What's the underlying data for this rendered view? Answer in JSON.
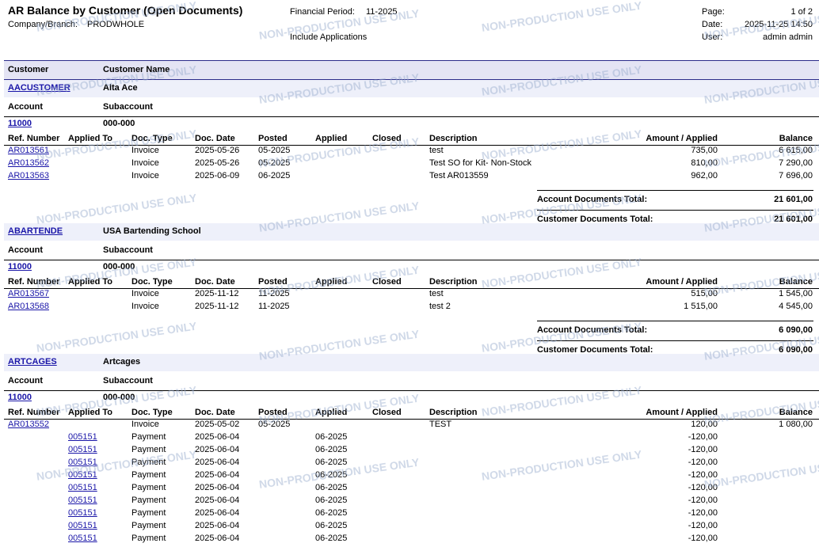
{
  "report": {
    "title": "AR Balance by Customer (Open Documents)",
    "company_label": "Company/Branch:",
    "company_value": "PRODWHOLE",
    "period_label": "Financial Period:",
    "period_value": "11-2025",
    "include_applications": "Include Applications",
    "page_label": "Page:",
    "page_value": "1 of 2",
    "date_label": "Date:",
    "date_value": "2025-11-25 14:50",
    "user_label": "User:",
    "user_value": "admin admin"
  },
  "headers": {
    "customer": "Customer",
    "customer_name": "Customer Name",
    "account": "Account",
    "subaccount": "Subaccount",
    "ref_number": "Ref. Number",
    "applied_to": "Applied To",
    "doc_type": "Doc. Type",
    "doc_date": "Doc. Date",
    "posted": "Posted",
    "applied": "Applied",
    "closed": "Closed",
    "description": "Description",
    "amount_applied": "Amount / Applied",
    "balance": "Balance"
  },
  "labels": {
    "account_total": "Account Documents Total:",
    "customer_total": "Customer Documents Total:"
  },
  "watermark": "NON-PRODUCTION USE ONLY",
  "customers": [
    {
      "id": "AACUSTOMER",
      "name": "Alta Ace",
      "account": "11000",
      "subaccount": "000-000",
      "rows": [
        {
          "ref": "AR013561",
          "applied_to": "",
          "doc_type": "Invoice",
          "doc_date": "2025-05-26",
          "posted": "05-2025",
          "applied": "",
          "closed": "",
          "description": "test",
          "amount": "735,00",
          "balance": "6 615,00"
        },
        {
          "ref": "AR013562",
          "applied_to": "",
          "doc_type": "Invoice",
          "doc_date": "2025-05-26",
          "posted": "05-2025",
          "applied": "",
          "closed": "",
          "description": "Test SO for Kit- Non-Stock",
          "amount": "810,00",
          "balance": "7 290,00"
        },
        {
          "ref": "AR013563",
          "applied_to": "",
          "doc_type": "Invoice",
          "doc_date": "2025-06-09",
          "posted": "06-2025",
          "applied": "",
          "closed": "",
          "description": "Test AR013559",
          "amount": "962,00",
          "balance": "7 696,00"
        }
      ],
      "account_total": "21 601,00",
      "customer_total": "21 601,00"
    },
    {
      "id": "ABARTENDE",
      "name": "USA Bartending School",
      "account": "11000",
      "subaccount": "000-000",
      "rows": [
        {
          "ref": "AR013567",
          "applied_to": "",
          "doc_type": "Invoice",
          "doc_date": "2025-11-12",
          "posted": "11-2025",
          "applied": "",
          "closed": "",
          "description": "test",
          "amount": "515,00",
          "balance": "1 545,00"
        },
        {
          "ref": "AR013568",
          "applied_to": "",
          "doc_type": "Invoice",
          "doc_date": "2025-11-12",
          "posted": "11-2025",
          "applied": "",
          "closed": "",
          "description": "test 2",
          "amount": "1 515,00",
          "balance": "4 545,00"
        }
      ],
      "account_total": "6 090,00",
      "customer_total": "6 090,00"
    },
    {
      "id": "ARTCAGES",
      "name": "Artcages",
      "account": "11000",
      "subaccount": "000-000",
      "rows": [
        {
          "ref": "AR013552",
          "applied_to": "",
          "doc_type": "Invoice",
          "doc_date": "2025-05-02",
          "posted": "05-2025",
          "applied": "",
          "closed": "",
          "description": "TEST",
          "amount": "120,00",
          "balance": "1 080,00"
        },
        {
          "ref": "",
          "applied_to": "005151",
          "doc_type": "Payment",
          "doc_date": "2025-06-04",
          "posted": "",
          "applied": "06-2025",
          "closed": "",
          "description": "",
          "amount": "-120,00",
          "balance": ""
        },
        {
          "ref": "",
          "applied_to": "005151",
          "doc_type": "Payment",
          "doc_date": "2025-06-04",
          "posted": "",
          "applied": "06-2025",
          "closed": "",
          "description": "",
          "amount": "-120,00",
          "balance": ""
        },
        {
          "ref": "",
          "applied_to": "005151",
          "doc_type": "Payment",
          "doc_date": "2025-06-04",
          "posted": "",
          "applied": "06-2025",
          "closed": "",
          "description": "",
          "amount": "-120,00",
          "balance": ""
        },
        {
          "ref": "",
          "applied_to": "005151",
          "doc_type": "Payment",
          "doc_date": "2025-06-04",
          "posted": "",
          "applied": "06-2025",
          "closed": "",
          "description": "",
          "amount": "-120,00",
          "balance": ""
        },
        {
          "ref": "",
          "applied_to": "005151",
          "doc_type": "Payment",
          "doc_date": "2025-06-04",
          "posted": "",
          "applied": "06-2025",
          "closed": "",
          "description": "",
          "amount": "-120,00",
          "balance": ""
        },
        {
          "ref": "",
          "applied_to": "005151",
          "doc_type": "Payment",
          "doc_date": "2025-06-04",
          "posted": "",
          "applied": "06-2025",
          "closed": "",
          "description": "",
          "amount": "-120,00",
          "balance": ""
        },
        {
          "ref": "",
          "applied_to": "005151",
          "doc_type": "Payment",
          "doc_date": "2025-06-04",
          "posted": "",
          "applied": "06-2025",
          "closed": "",
          "description": "",
          "amount": "-120,00",
          "balance": ""
        },
        {
          "ref": "",
          "applied_to": "005151",
          "doc_type": "Payment",
          "doc_date": "2025-06-04",
          "posted": "",
          "applied": "06-2025",
          "closed": "",
          "description": "",
          "amount": "-120,00",
          "balance": ""
        },
        {
          "ref": "",
          "applied_to": "005151",
          "doc_type": "Payment",
          "doc_date": "2025-06-04",
          "posted": "",
          "applied": "06-2025",
          "closed": "",
          "description": "",
          "amount": "-120,00",
          "balance": ""
        }
      ]
    }
  ]
}
